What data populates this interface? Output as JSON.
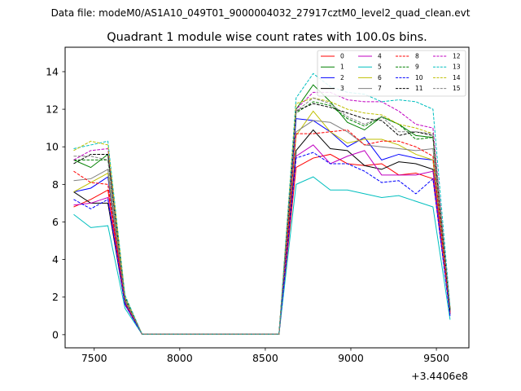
{
  "chart_data": {
    "type": "line",
    "suptitle": "Data file: modeM0/AS1A10_049T01_9000004032_27917cztM0_level2_quad_clean.evt",
    "title": "Quadrant 1 module wise count rates with 100.0s bins.",
    "xlabel": "",
    "ylabel": "",
    "x_offset_label": "+3.4406e8",
    "xlim": [
      7330,
      9690
    ],
    "ylim": [
      -0.7,
      15.3
    ],
    "xticks": [
      7500,
      8000,
      8500,
      9000,
      9500
    ],
    "yticks": [
      0,
      2,
      4,
      6,
      8,
      10,
      12,
      14
    ],
    "x": [
      7380,
      7480,
      7580,
      7680,
      7780,
      7880,
      7980,
      8080,
      8180,
      8280,
      8380,
      8480,
      8580,
      8680,
      8780,
      8880,
      8980,
      9080,
      9180,
      9280,
      9380,
      9480,
      9580
    ],
    "series": [
      {
        "name": "0",
        "color": "#ff0000",
        "dash": false,
        "values": [
          6.8,
          7.2,
          7.7,
          1.7,
          0.02,
          0.02,
          0.02,
          0.02,
          0.02,
          0.02,
          0.02,
          0.02,
          0.02,
          8.9,
          9.4,
          9.6,
          9.1,
          9.0,
          9.1,
          8.5,
          8.6,
          8.3,
          1.1
        ]
      },
      {
        "name": "1",
        "color": "#008000",
        "dash": false,
        "values": [
          9.3,
          8.9,
          9.6,
          1.9,
          0.02,
          0.02,
          0.02,
          0.02,
          0.02,
          0.02,
          0.02,
          0.02,
          0.02,
          12.0,
          13.3,
          12.4,
          11.3,
          10.9,
          11.6,
          11.2,
          10.6,
          10.5,
          1.4
        ]
      },
      {
        "name": "2",
        "color": "#0000ff",
        "dash": false,
        "values": [
          7.6,
          7.8,
          8.4,
          1.7,
          0.02,
          0.02,
          0.02,
          0.02,
          0.02,
          0.02,
          0.02,
          0.02,
          0.02,
          11.5,
          11.4,
          10.8,
          10.0,
          10.5,
          9.3,
          9.6,
          9.4,
          9.3,
          1.2
        ]
      },
      {
        "name": "3",
        "color": "#000000",
        "dash": false,
        "values": [
          7.6,
          7.0,
          7.0,
          1.6,
          0.02,
          0.02,
          0.02,
          0.02,
          0.02,
          0.02,
          0.02,
          0.02,
          0.02,
          9.8,
          10.9,
          9.9,
          9.8,
          9.0,
          8.8,
          9.2,
          9.1,
          8.8,
          1.1
        ]
      },
      {
        "name": "4",
        "color": "#c000c0",
        "dash": false,
        "values": [
          6.9,
          7.0,
          7.3,
          1.6,
          0.02,
          0.02,
          0.02,
          0.02,
          0.02,
          0.02,
          0.02,
          0.02,
          0.02,
          9.5,
          10.1,
          9.1,
          9.5,
          9.8,
          8.5,
          8.5,
          8.5,
          8.7,
          1.1
        ]
      },
      {
        "name": "5",
        "color": "#00bfbf",
        "dash": false,
        "values": [
          6.4,
          5.7,
          5.8,
          1.4,
          0.02,
          0.02,
          0.02,
          0.02,
          0.02,
          0.02,
          0.02,
          0.02,
          0.02,
          8.0,
          8.4,
          7.7,
          7.7,
          7.5,
          7.3,
          7.4,
          7.1,
          6.8,
          0.8
        ]
      },
      {
        "name": "6",
        "color": "#bfbf00",
        "dash": false,
        "values": [
          7.6,
          8.1,
          8.6,
          1.8,
          0.02,
          0.02,
          0.02,
          0.02,
          0.02,
          0.02,
          0.02,
          0.02,
          0.02,
          10.6,
          11.9,
          10.8,
          10.2,
          10.4,
          10.4,
          10.1,
          9.6,
          9.3,
          1.2
        ]
      },
      {
        "name": "7",
        "color": "#808080",
        "dash": false,
        "values": [
          8.2,
          8.3,
          8.8,
          1.8,
          0.02,
          0.02,
          0.02,
          0.02,
          0.02,
          0.02,
          0.02,
          0.02,
          0.02,
          10.8,
          11.4,
          11.3,
          10.8,
          10.1,
          10.0,
          9.9,
          9.8,
          9.9,
          1.2
        ]
      },
      {
        "name": "8",
        "color": "#ff0000",
        "dash": true,
        "values": [
          8.7,
          8.1,
          8.0,
          1.7,
          0.02,
          0.02,
          0.02,
          0.02,
          0.02,
          0.02,
          0.02,
          0.02,
          0.02,
          10.7,
          10.7,
          10.8,
          10.9,
          10.1,
          10.3,
          10.3,
          10.0,
          9.5,
          1.2
        ]
      },
      {
        "name": "9",
        "color": "#008000",
        "dash": true,
        "values": [
          9.3,
          9.3,
          9.3,
          1.9,
          0.02,
          0.02,
          0.02,
          0.02,
          0.02,
          0.02,
          0.02,
          0.02,
          0.02,
          11.8,
          12.4,
          12.2,
          11.5,
          11.1,
          11.6,
          11.2,
          10.4,
          10.5,
          1.4
        ]
      },
      {
        "name": "10",
        "color": "#0000ff",
        "dash": true,
        "values": [
          7.2,
          6.7,
          7.2,
          1.6,
          0.02,
          0.02,
          0.02,
          0.02,
          0.02,
          0.02,
          0.02,
          0.02,
          0.02,
          9.4,
          9.7,
          9.1,
          9.1,
          8.7,
          8.1,
          8.2,
          7.5,
          8.3,
          1.0
        ]
      },
      {
        "name": "11",
        "color": "#000000",
        "dash": true,
        "values": [
          9.1,
          9.6,
          9.6,
          2.0,
          0.02,
          0.02,
          0.02,
          0.02,
          0.02,
          0.02,
          0.02,
          0.02,
          0.02,
          11.9,
          12.3,
          12.1,
          11.8,
          11.5,
          11.4,
          10.6,
          10.8,
          10.6,
          1.3
        ]
      },
      {
        "name": "12",
        "color": "#c000c0",
        "dash": true,
        "values": [
          9.3,
          9.8,
          9.9,
          2.0,
          0.02,
          0.02,
          0.02,
          0.02,
          0.02,
          0.02,
          0.02,
          0.02,
          0.02,
          12.0,
          12.9,
          12.9,
          12.5,
          12.4,
          12.4,
          11.9,
          11.2,
          11.0,
          1.4
        ]
      },
      {
        "name": "13",
        "color": "#00bfbf",
        "dash": true,
        "values": [
          9.9,
          10.1,
          10.3,
          2.1,
          0.02,
          0.02,
          0.02,
          0.02,
          0.02,
          0.02,
          0.02,
          0.02,
          0.02,
          12.6,
          13.9,
          13.2,
          12.9,
          12.8,
          12.4,
          12.5,
          12.4,
          12.0,
          1.5
        ]
      },
      {
        "name": "14",
        "color": "#bfbf00",
        "dash": true,
        "values": [
          9.8,
          10.3,
          10.1,
          2.0,
          0.02,
          0.02,
          0.02,
          0.02,
          0.02,
          0.02,
          0.02,
          0.02,
          0.02,
          12.3,
          12.6,
          12.4,
          12.0,
          11.8,
          11.7,
          11.2,
          11.0,
          10.7,
          1.4
        ]
      },
      {
        "name": "15",
        "color": "#808080",
        "dash": true,
        "values": [
          9.5,
          9.5,
          9.3,
          1.9,
          0.02,
          0.02,
          0.02,
          0.02,
          0.02,
          0.02,
          0.02,
          0.02,
          0.02,
          11.9,
          12.6,
          12.3,
          11.6,
          11.2,
          11.6,
          10.8,
          10.8,
          10.7,
          1.4
        ]
      }
    ]
  }
}
